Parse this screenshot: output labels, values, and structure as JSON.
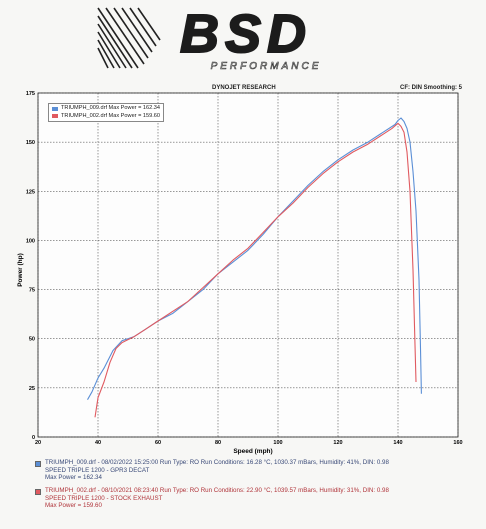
{
  "logo": {
    "main_text": "BSD",
    "sub_text": "PERFORMANCE"
  },
  "header": {
    "title": "DYNOJET RESEARCH",
    "correction": "CF: DIN  Smoothing: 5"
  },
  "legend": [
    {
      "text": "TRIUMPH_009.drf Max Power = 162.34",
      "color": "#5b8fd6"
    },
    {
      "text": "TRIUMPH_002.drf Max Power = 159.60",
      "color": "#e05a60"
    }
  ],
  "runs": [
    {
      "line1": "TRIUMPH_009.drf - 08/02/2022 15:25:00  Run Type: RO  Run Conditions: 16.28 °C, 1030.37 mBars,  Humidity: 41%, DIN: 0.98",
      "line2": "SPEED TRIPLE 1200 - GPR3 DECAT",
      "line3": "Max Power = 162.34",
      "color": "#5b8fd6"
    },
    {
      "line1": "TRIUMPH_002.drf - 08/10/2021 08:23:40  Run Type: RO  Run Conditions: 22.90 °C, 1039.57 mBars,  Humidity: 31%, DIN: 0.98",
      "line2": "SPEED TRIPLE 1200 - STOCK EXHAUST",
      "line3": "Max Power = 159.60",
      "color": "#e05a60"
    }
  ],
  "chart_data": {
    "type": "line",
    "title": "DYNOJET RESEARCH",
    "xlabel": "Speed (mph)",
    "ylabel": "Power (hp)",
    "xlim": [
      20,
      160
    ],
    "ylim": [
      0,
      175
    ],
    "xticks": [
      20,
      40,
      60,
      80,
      100,
      120,
      140,
      160
    ],
    "yticks": [
      0,
      25,
      50,
      75,
      100,
      125,
      150,
      175
    ],
    "grid": true,
    "legend_position": "top-left",
    "series": [
      {
        "name": "TRIUMPH_009.drf",
        "color": "#5b8fd6",
        "points": [
          [
            36.5,
            19
          ],
          [
            38,
            23
          ],
          [
            40,
            30
          ],
          [
            42,
            35
          ],
          [
            45,
            44
          ],
          [
            48,
            49
          ],
          [
            52,
            51
          ],
          [
            56,
            55
          ],
          [
            60,
            59
          ],
          [
            65,
            63
          ],
          [
            70,
            69
          ],
          [
            75,
            75
          ],
          [
            80,
            83
          ],
          [
            85,
            89
          ],
          [
            90,
            95
          ],
          [
            95,
            103
          ],
          [
            100,
            112
          ],
          [
            105,
            120
          ],
          [
            110,
            128
          ],
          [
            115,
            135
          ],
          [
            120,
            141
          ],
          [
            125,
            146
          ],
          [
            130,
            150
          ],
          [
            135,
            155
          ],
          [
            139,
            159
          ],
          [
            140,
            161
          ],
          [
            141,
            162.3
          ],
          [
            142,
            160.5
          ],
          [
            143,
            157
          ],
          [
            144,
            150
          ],
          [
            145,
            135
          ],
          [
            146,
            115
          ],
          [
            147,
            80
          ],
          [
            147.5,
            45
          ],
          [
            147.8,
            22
          ]
        ]
      },
      {
        "name": "TRIUMPH_002.drf",
        "color": "#e05a60",
        "points": [
          [
            39,
            10
          ],
          [
            40,
            20
          ],
          [
            42,
            28
          ],
          [
            44,
            38
          ],
          [
            46,
            45
          ],
          [
            48,
            48
          ],
          [
            52,
            51
          ],
          [
            56,
            55
          ],
          [
            60,
            59
          ],
          [
            65,
            64
          ],
          [
            70,
            69
          ],
          [
            75,
            76
          ],
          [
            80,
            83
          ],
          [
            85,
            90
          ],
          [
            90,
            96
          ],
          [
            95,
            104
          ],
          [
            100,
            112
          ],
          [
            105,
            119
          ],
          [
            110,
            127
          ],
          [
            115,
            134
          ],
          [
            120,
            140
          ],
          [
            125,
            145
          ],
          [
            130,
            149
          ],
          [
            135,
            154
          ],
          [
            138,
            157
          ],
          [
            140,
            159.6
          ],
          [
            141,
            158
          ],
          [
            142,
            155
          ],
          [
            143,
            145
          ],
          [
            144,
            125
          ],
          [
            145,
            85
          ],
          [
            145.7,
            45
          ],
          [
            146,
            28
          ]
        ]
      }
    ]
  }
}
